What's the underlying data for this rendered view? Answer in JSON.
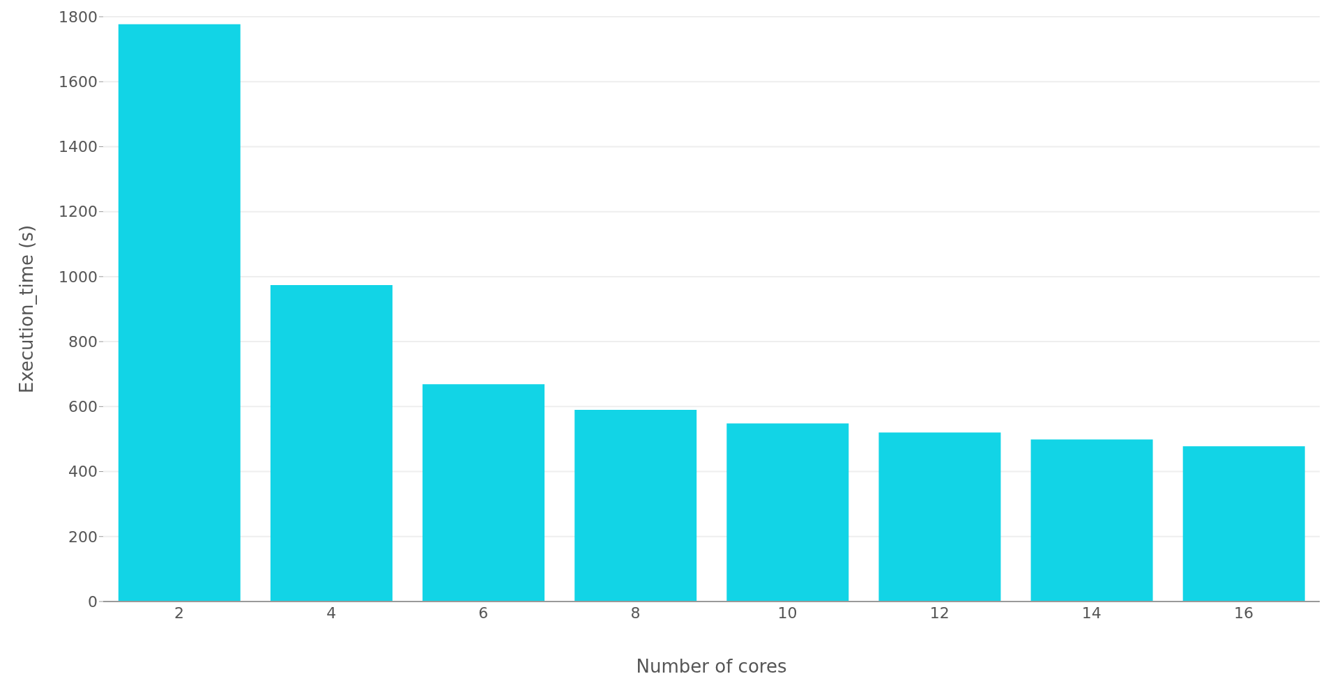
{
  "chart_data": {
    "type": "bar",
    "xlabel": "Number of cores",
    "ylabel": "Execution_time (s)",
    "categories": [
      "2",
      "4",
      "6",
      "8",
      "10",
      "12",
      "14",
      "16"
    ],
    "values": [
      1777,
      974,
      669,
      590,
      548,
      520,
      499,
      478
    ],
    "color": "#12d4e6",
    "ylim": [
      0,
      1800
    ],
    "yticks": [
      0,
      200,
      400,
      600,
      800,
      1000,
      1200,
      1400,
      1600,
      1800
    ],
    "grid": "y"
  }
}
